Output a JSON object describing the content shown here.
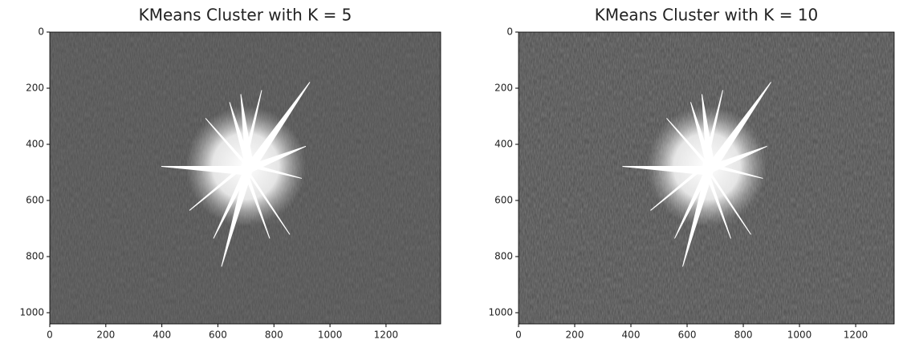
{
  "chart_data": [
    {
      "type": "image",
      "title": "KMeans Cluster with K = 5",
      "xlim": [
        0,
        1395
      ],
      "ylim": [
        1040,
        0
      ],
      "xticks": [
        0,
        200,
        400,
        600,
        800,
        1000,
        1200
      ],
      "yticks": [
        0,
        200,
        400,
        600,
        800,
        1000
      ]
    },
    {
      "type": "image",
      "title": "KMeans Cluster with K = 10",
      "xlim": [
        0,
        1337
      ],
      "ylim": [
        1040,
        0
      ],
      "xticks": [
        0,
        200,
        400,
        600,
        800,
        1000,
        1200
      ],
      "yticks": [
        0,
        200,
        400,
        600,
        800,
        1000
      ]
    }
  ]
}
